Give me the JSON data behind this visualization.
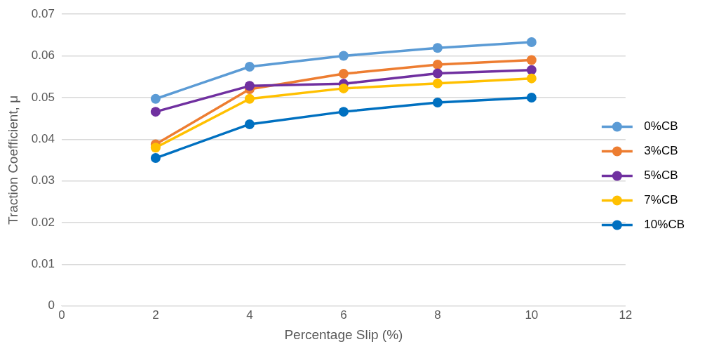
{
  "chart_data": {
    "type": "line",
    "xlabel": "Percentage Slip (%)",
    "ylabel": "Traction Coefficient, μ",
    "x": [
      2,
      4,
      6,
      8,
      10
    ],
    "xlim": [
      0,
      12
    ],
    "xticks": [
      0,
      2,
      4,
      6,
      8,
      10,
      12
    ],
    "ylim": [
      0,
      0.07
    ],
    "yticks": [
      0,
      0.01,
      0.02,
      0.03,
      0.04,
      0.05,
      0.06,
      0.07
    ],
    "grid": "y",
    "legend": "right",
    "marker": "circle",
    "line_style": "solid",
    "series": [
      {
        "name": "0%CB",
        "color": "#5b9bd5",
        "values": [
          0.0497,
          0.0574,
          0.06,
          0.0619,
          0.0633
        ]
      },
      {
        "name": "3%CB",
        "color": "#ed7d31",
        "values": [
          0.0388,
          0.052,
          0.0557,
          0.0579,
          0.059
        ]
      },
      {
        "name": "5%CB",
        "color": "#7030a0",
        "values": [
          0.0466,
          0.0528,
          0.0533,
          0.0558,
          0.0566
        ]
      },
      {
        "name": "7%CB",
        "color": "#ffc000",
        "values": [
          0.038,
          0.0497,
          0.0522,
          0.0534,
          0.0546
        ]
      },
      {
        "name": "10%CB",
        "color": "#0070c0",
        "values": [
          0.0355,
          0.0436,
          0.0466,
          0.0488,
          0.05
        ]
      }
    ]
  }
}
